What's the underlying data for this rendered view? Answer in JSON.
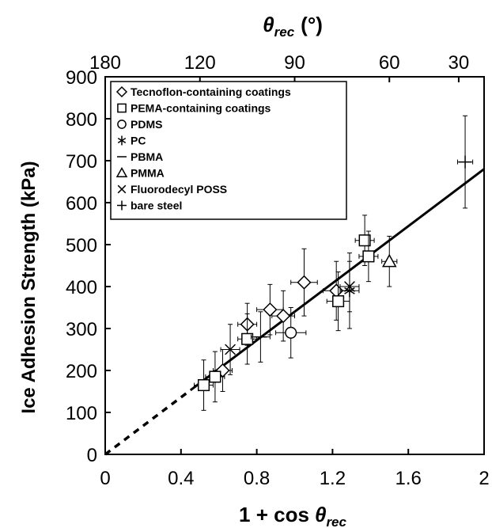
{
  "chart_data": {
    "type": "scatter",
    "xlabel_main": "1 + cos",
    "xlabel_symbol": "θ",
    "xlabel_subscript": "rec",
    "xlabel_top_symbol": "θ",
    "xlabel_top_subscript": "rec",
    "xlabel_top_unit": "(°)",
    "ylabel": "Ice Adhesion Strength (kPa)",
    "xlim": [
      0,
      2
    ],
    "ylim": [
      0,
      900
    ],
    "x_ticks": [
      0,
      0.4,
      0.8,
      1.2,
      1.6,
      2
    ],
    "x_tick_labels": [
      "0",
      "0.4",
      "0.8",
      "1.2",
      "1.6",
      "2"
    ],
    "y_ticks": [
      0,
      100,
      200,
      300,
      400,
      500,
      600,
      700,
      800,
      900
    ],
    "y_tick_labels": [
      "0",
      "100",
      "200",
      "300",
      "400",
      "500",
      "600",
      "700",
      "800",
      "900"
    ],
    "top_ticks": [
      180,
      120,
      90,
      60,
      30
    ],
    "top_tick_labels": [
      "180",
      "120",
      "90",
      "60",
      "30"
    ],
    "legend_position": "top-left",
    "fit_line": {
      "slope": 340,
      "intercept": 0,
      "dashed_until_x": 0.45
    },
    "series": [
      {
        "name": "Tecnoflon-containing coatings",
        "marker": "diamond",
        "points": [
          {
            "x": 0.62,
            "y": 200,
            "xerr": 0.05,
            "yerr": 50
          },
          {
            "x": 0.75,
            "y": 310,
            "xerr": 0.05,
            "yerr": 50
          },
          {
            "x": 0.87,
            "y": 345,
            "xerr": 0.07,
            "yerr": 60
          },
          {
            "x": 0.94,
            "y": 330,
            "xerr": 0.06,
            "yerr": 60
          },
          {
            "x": 1.05,
            "y": 410,
            "xerr": 0.07,
            "yerr": 80
          },
          {
            "x": 1.22,
            "y": 390,
            "xerr": 0.07,
            "yerr": 70
          }
        ]
      },
      {
        "name": "PEMA-containing coatings",
        "marker": "square",
        "points": [
          {
            "x": 0.52,
            "y": 165,
            "xerr": 0.05,
            "yerr": 60
          },
          {
            "x": 0.58,
            "y": 185,
            "xerr": 0.05,
            "yerr": 60
          },
          {
            "x": 0.75,
            "y": 275,
            "xerr": 0.05,
            "yerr": 60
          },
          {
            "x": 1.23,
            "y": 365,
            "xerr": 0.06,
            "yerr": 70
          },
          {
            "x": 1.37,
            "y": 510,
            "xerr": 0.05,
            "yerr": 60
          },
          {
            "x": 1.39,
            "y": 472,
            "xerr": 0.05,
            "yerr": 60
          }
        ]
      },
      {
        "name": "PDMS",
        "marker": "circle",
        "points": [
          {
            "x": 0.98,
            "y": 290,
            "xerr": 0.08,
            "yerr": 60
          }
        ]
      },
      {
        "name": "PC",
        "marker": "asterisk",
        "points": [
          {
            "x": 1.29,
            "y": 390,
            "xerr": 0.05,
            "yerr": 90
          }
        ]
      },
      {
        "name": "PBMA",
        "marker": "dash",
        "points": [
          {
            "x": 0.82,
            "y": 280,
            "xerr": 0.05,
            "yerr": 60
          }
        ]
      },
      {
        "name": "PMMA",
        "marker": "triangle",
        "points": [
          {
            "x": 1.5,
            "y": 460,
            "xerr": 0.04,
            "yerr": 60
          }
        ]
      },
      {
        "name": "Fluorodecyl POSS",
        "marker": "x",
        "points": [
          {
            "x": 0.66,
            "y": 250,
            "xerr": 0.05,
            "yerr": 60
          },
          {
            "x": 1.29,
            "y": 400,
            "xerr": 0.05,
            "yerr": 60
          }
        ]
      },
      {
        "name": "bare steel",
        "marker": "plus",
        "points": [
          {
            "x": 1.9,
            "y": 697,
            "xerr": 0.04,
            "yerr": 110
          }
        ]
      }
    ]
  }
}
